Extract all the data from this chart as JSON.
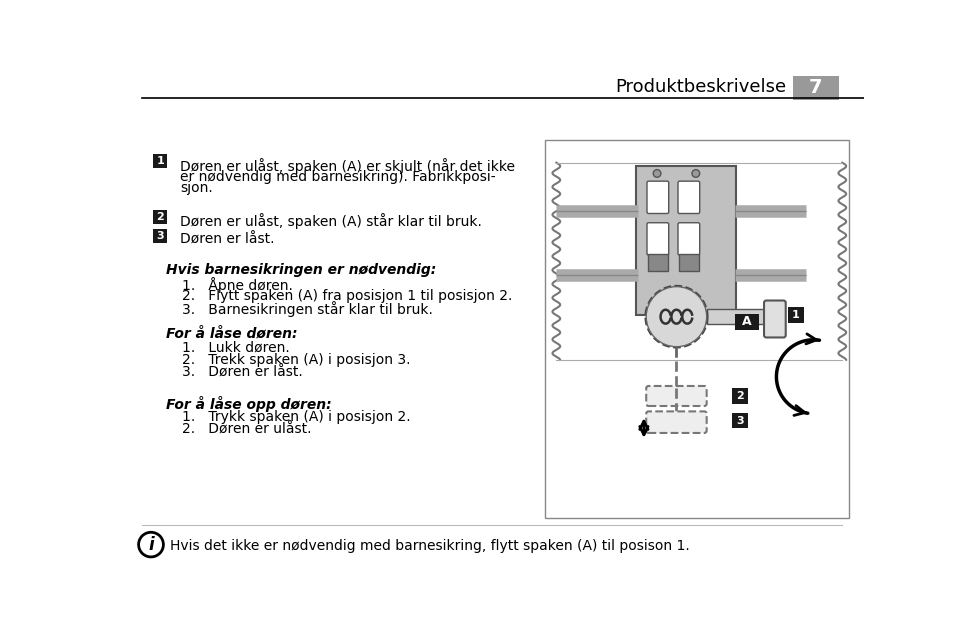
{
  "header_text": "Produktbeskrivelse",
  "page_number": "7",
  "bg_color": "#ffffff",
  "footer_text": "Hvis det ikke er nødvendig med barnesikring, flytt spaken (A) til posison 1."
}
